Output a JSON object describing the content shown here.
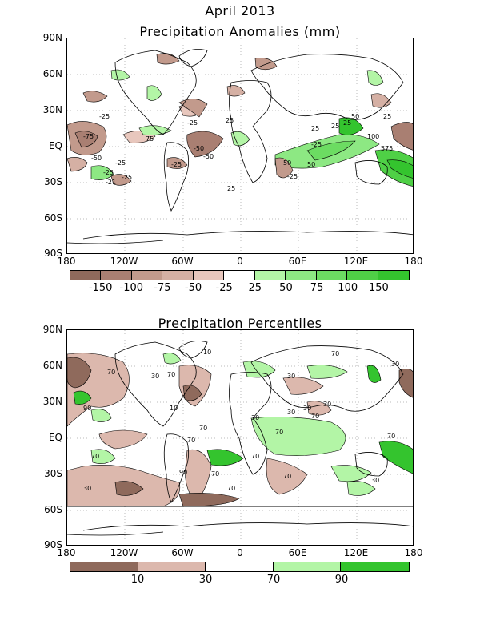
{
  "header": {
    "date": "April 2013"
  },
  "panels": {
    "anomalies": {
      "title": "Precipitation Anomalies (mm)",
      "contour_labels": [
        "-25",
        "-75",
        "75",
        "-25",
        "-50",
        "25",
        "-25",
        "-50",
        "-50",
        "-25",
        "-25",
        "-25",
        "50",
        "25",
        "25",
        "25",
        "50",
        "-25",
        "100",
        "50",
        "575",
        "25",
        "-21",
        "-25",
        "25"
      ],
      "colorbar": {
        "colors": [
          "#8f6a5c",
          "#a97f72",
          "#c29a8c",
          "#d5b0a4",
          "#e8c7bd",
          "#ffffff",
          "#b3f5a6",
          "#8de883",
          "#6cdc62",
          "#4fd046",
          "#34c42e"
        ],
        "labels": [
          "-150",
          "-100",
          "-75",
          "-50",
          "-25",
          "25",
          "50",
          "75",
          "100",
          "150"
        ]
      }
    },
    "percentiles": {
      "title": "Precipitation Percentiles",
      "contour_labels": [
        "10",
        "70",
        "70",
        "30",
        "90",
        "10",
        "70",
        "70",
        "70",
        "30",
        "70",
        "30",
        "30",
        "70",
        "30",
        "70",
        "30",
        "90",
        "70",
        "30",
        "70",
        "70",
        "70",
        "30",
        "70",
        "30"
      ],
      "colorbar": {
        "colors": [
          "#8f6a5c",
          "#dcb8ad",
          "#ffffff",
          "#b3f5a6",
          "#34c42e"
        ],
        "labels": [
          "10",
          "30",
          "70",
          "90"
        ]
      }
    }
  },
  "axes": {
    "lat_ticks": [
      "90N",
      "60N",
      "30N",
      "EQ",
      "30S",
      "60S",
      "90S"
    ],
    "lon_ticks": [
      "180",
      "120W",
      "60W",
      "0",
      "60E",
      "120E",
      "180"
    ]
  }
}
